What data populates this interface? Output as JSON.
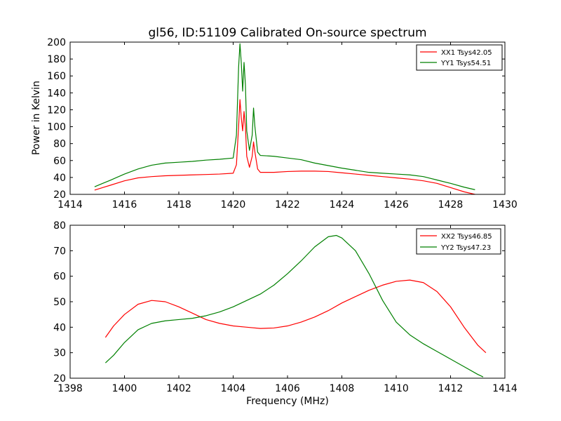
{
  "chart_data": [
    {
      "type": "line",
      "title": "gl56, ID:51109 Calibrated On-source spectrum",
      "xlabel": "",
      "ylabel": "Power in Kelvin",
      "xlim": [
        1414,
        1430
      ],
      "ylim": [
        20,
        200
      ],
      "xticks": [
        1414,
        1416,
        1418,
        1420,
        1422,
        1424,
        1426,
        1428,
        1430
      ],
      "yticks": [
        20,
        40,
        60,
        80,
        100,
        120,
        140,
        160,
        180,
        200
      ],
      "legend_position": "top-right",
      "series": [
        {
          "name": "XX1 Tsys42.05",
          "color": "#ff0000",
          "x": [
            1414.9,
            1415.2,
            1415.5,
            1416.0,
            1416.5,
            1417.0,
            1417.5,
            1418.0,
            1418.5,
            1419.0,
            1419.5,
            1420.0,
            1420.12,
            1420.2,
            1420.25,
            1420.3,
            1420.35,
            1420.4,
            1420.45,
            1420.5,
            1420.6,
            1420.7,
            1420.75,
            1420.8,
            1420.9,
            1421.0,
            1421.5,
            1422.0,
            1422.5,
            1423.0,
            1423.5,
            1424.0,
            1424.5,
            1425.0,
            1425.5,
            1426.0,
            1426.5,
            1427.0,
            1427.5,
            1428.0,
            1428.5,
            1428.9
          ],
          "values": [
            25,
            28,
            31,
            36,
            39.5,
            41,
            42,
            42.5,
            43,
            43.5,
            44,
            45,
            55,
            100,
            132,
            110,
            95,
            118,
            100,
            65,
            52,
            65,
            82,
            70,
            50,
            46,
            46,
            47,
            47.5,
            47.5,
            47,
            45.5,
            44,
            42.5,
            41,
            39.5,
            38,
            36,
            33,
            28,
            23,
            20
          ]
        },
        {
          "name": "YY1 Tsys54.51",
          "color": "#008000",
          "x": [
            1414.9,
            1415.2,
            1415.5,
            1416.0,
            1416.5,
            1417.0,
            1417.5,
            1418.0,
            1418.5,
            1419.0,
            1419.5,
            1420.0,
            1420.12,
            1420.2,
            1420.25,
            1420.3,
            1420.35,
            1420.4,
            1420.45,
            1420.5,
            1420.6,
            1420.7,
            1420.75,
            1420.8,
            1420.9,
            1421.0,
            1421.5,
            1422.0,
            1422.5,
            1423.0,
            1423.5,
            1424.0,
            1424.5,
            1425.0,
            1425.5,
            1426.0,
            1426.5,
            1427.0,
            1427.5,
            1428.0,
            1428.5,
            1428.9
          ],
          "values": [
            29,
            33,
            37,
            44,
            50,
            54.5,
            57,
            58,
            59,
            60.5,
            61.5,
            63,
            90,
            170,
            198,
            175,
            142,
            176,
            150,
            95,
            72,
            90,
            122,
            100,
            70,
            66,
            65,
            63,
            61,
            57,
            54,
            51,
            48.5,
            46,
            45,
            44,
            43,
            41,
            37,
            33,
            28.5,
            25.5
          ]
        }
      ]
    },
    {
      "type": "line",
      "title": "",
      "xlabel": "Frequency (MHz)",
      "ylabel": "",
      "xlim": [
        1398,
        1414
      ],
      "ylim": [
        20,
        80
      ],
      "xticks": [
        1398,
        1400,
        1402,
        1404,
        1406,
        1408,
        1410,
        1412,
        1414
      ],
      "yticks": [
        20,
        30,
        40,
        50,
        60,
        70,
        80
      ],
      "legend_position": "top-right",
      "series": [
        {
          "name": "XX2 Tsys46.85",
          "color": "#ff0000",
          "x": [
            1399.3,
            1399.6,
            1400.0,
            1400.5,
            1401.0,
            1401.5,
            1402.0,
            1402.5,
            1403.0,
            1403.5,
            1404.0,
            1404.5,
            1405.0,
            1405.5,
            1406.0,
            1406.5,
            1407.0,
            1407.5,
            1408.0,
            1408.5,
            1409.0,
            1409.5,
            1410.0,
            1410.5,
            1411.0,
            1411.5,
            1412.0,
            1412.5,
            1413.0,
            1413.3
          ],
          "values": [
            36,
            40.5,
            45,
            49,
            50.5,
            50,
            48,
            45.5,
            43,
            41.5,
            40.5,
            40,
            39.5,
            39.7,
            40.5,
            42,
            44,
            46.5,
            49.5,
            52,
            54.5,
            56.5,
            58,
            58.5,
            57.5,
            54,
            48,
            40,
            33,
            30
          ]
        },
        {
          "name": "YY2 Tsys47.23",
          "color": "#008000",
          "x": [
            1399.3,
            1399.6,
            1400.0,
            1400.5,
            1401.0,
            1401.5,
            1402.0,
            1402.5,
            1403.0,
            1403.5,
            1404.0,
            1404.5,
            1405.0,
            1405.5,
            1406.0,
            1406.5,
            1407.0,
            1407.5,
            1407.8,
            1408.0,
            1408.5,
            1409.0,
            1409.5,
            1410.0,
            1410.5,
            1411.0,
            1411.5,
            1412.0,
            1412.5,
            1413.0,
            1413.2
          ],
          "values": [
            26,
            29,
            34,
            39,
            41.5,
            42.5,
            43,
            43.5,
            44.5,
            46,
            48,
            50.5,
            53,
            56.5,
            61,
            66,
            71.5,
            75.5,
            76,
            75,
            70,
            61,
            50.5,
            42,
            37,
            33.5,
            30.5,
            27.5,
            24.5,
            21.5,
            20.5
          ]
        }
      ]
    }
  ]
}
